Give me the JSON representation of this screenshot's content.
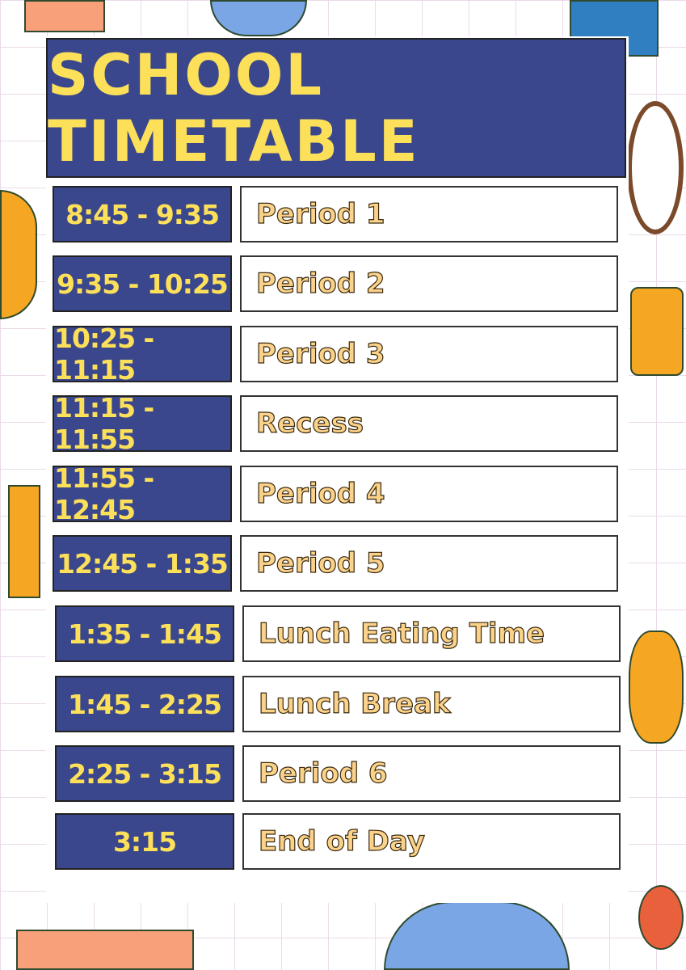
{
  "title": "SCHOOL TIMETABLE",
  "colors": {
    "header_bg": "#3b478c",
    "title": "#fde05a",
    "time_text": "#fde05a",
    "label_text": "#fbd28a"
  },
  "rows": [
    {
      "time": "8:45 - 9:35",
      "label": "Period 1"
    },
    {
      "time": "9:35 - 10:25",
      "label": "Period 2"
    },
    {
      "time": "10:25 - 11:15",
      "label": "Period 3"
    },
    {
      "time": "11:15 - 11:55",
      "label": "Recess"
    },
    {
      "time": "11:55 - 12:45",
      "label": "Period 4"
    },
    {
      "time": "12:45 - 1:35",
      "label": "Period 5"
    },
    {
      "time": "1:35 - 1:45",
      "label": "Lunch Eating Time"
    },
    {
      "time": "1:45 - 2:25",
      "label": "Lunch Break"
    },
    {
      "time": "2:25 - 3:15",
      "label": "Period 6"
    },
    {
      "time": "3:15",
      "label": "End of Day"
    }
  ]
}
